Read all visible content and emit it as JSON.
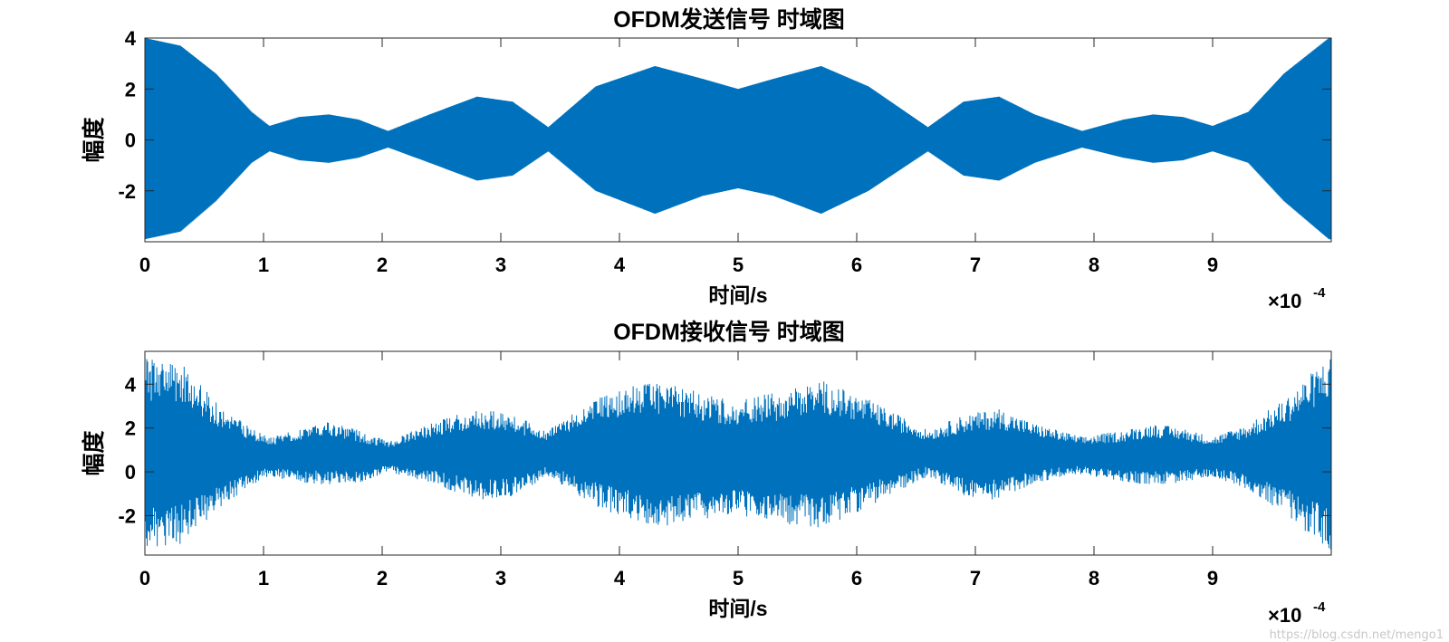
{
  "chart_data": [
    {
      "type": "line",
      "title": "OFDM发送信号 时域图",
      "xlabel": "时间/s",
      "ylabel": "幅度",
      "x_exponent_label": "×10",
      "x_exponent_power": "-4",
      "xlim": [
        0,
        10
      ],
      "ylim": [
        -4,
        4
      ],
      "xticks": [
        0,
        1,
        2,
        3,
        4,
        5,
        6,
        7,
        8,
        9
      ],
      "yticks": [
        -2,
        0,
        2,
        4
      ],
      "xtick_labels": [
        "0",
        "1",
        "2",
        "3",
        "4",
        "5",
        "6",
        "7",
        "8",
        "9"
      ],
      "ytick_labels": [
        "-2",
        "0",
        "2",
        "4"
      ],
      "grid": false,
      "line_color": "#0072BD",
      "envelope": {
        "t": [
          0,
          0.3,
          0.6,
          0.9,
          1.05,
          1.3,
          1.55,
          1.8,
          2.05,
          2.4,
          2.8,
          3.1,
          3.4,
          3.8,
          4.3,
          4.7,
          5.0,
          5.3,
          5.7,
          6.1,
          6.6,
          6.9,
          7.2,
          7.5,
          7.9,
          8.25,
          8.5,
          8.75,
          9.0,
          9.3,
          9.6,
          9.98
        ],
        "upper": [
          4.0,
          3.7,
          2.6,
          1.1,
          0.55,
          0.9,
          1.0,
          0.8,
          0.35,
          1.0,
          1.7,
          1.5,
          0.5,
          2.1,
          2.9,
          2.4,
          2.0,
          2.4,
          2.9,
          2.1,
          0.5,
          1.5,
          1.7,
          1.0,
          0.35,
          0.8,
          1.0,
          0.9,
          0.55,
          1.1,
          2.6,
          4.0
        ],
        "lower": [
          -3.9,
          -3.6,
          -2.4,
          -0.9,
          -0.45,
          -0.8,
          -0.9,
          -0.7,
          -0.3,
          -0.9,
          -1.6,
          -1.4,
          -0.45,
          -2.0,
          -2.9,
          -2.2,
          -1.9,
          -2.2,
          -2.9,
          -2.0,
          -0.45,
          -1.4,
          -1.6,
          -0.9,
          -0.3,
          -0.7,
          -0.9,
          -0.8,
          -0.45,
          -0.9,
          -2.4,
          -3.9
        ]
      }
    },
    {
      "type": "line",
      "title": "OFDM接收信号 时域图",
      "xlabel": "时间/s",
      "ylabel": "幅度",
      "x_exponent_label": "×10",
      "x_exponent_power": "-4",
      "xlim": [
        0,
        10
      ],
      "ylim": [
        -3.8,
        5.5
      ],
      "xticks": [
        0,
        1,
        2,
        3,
        4,
        5,
        6,
        7,
        8,
        9
      ],
      "yticks": [
        -2,
        0,
        2,
        4
      ],
      "xtick_labels": [
        "0",
        "1",
        "2",
        "3",
        "4",
        "5",
        "6",
        "7",
        "8",
        "9"
      ],
      "ytick_labels": [
        "-2",
        "0",
        "2",
        "4"
      ],
      "grid": false,
      "line_color": "#0072BD",
      "envelope": {
        "t": [
          0,
          0.3,
          0.6,
          0.9,
          1.05,
          1.3,
          1.55,
          1.8,
          2.05,
          2.4,
          2.8,
          3.1,
          3.4,
          3.8,
          4.3,
          4.7,
          5.0,
          5.3,
          5.7,
          6.1,
          6.6,
          6.9,
          7.2,
          7.5,
          7.9,
          8.25,
          8.5,
          8.75,
          9.0,
          9.3,
          9.6,
          9.98
        ],
        "upper": [
          5.2,
          5.0,
          3.2,
          2.0,
          1.6,
          2.0,
          2.3,
          1.9,
          1.4,
          2.2,
          2.9,
          2.6,
          1.9,
          3.4,
          4.2,
          3.6,
          3.3,
          3.6,
          4.2,
          3.3,
          1.9,
          2.6,
          2.9,
          2.2,
          1.6,
          1.9,
          2.2,
          2.0,
          1.6,
          2.2,
          3.3,
          5.3
        ],
        "lower": [
          -3.5,
          -3.3,
          -1.8,
          -0.6,
          -0.2,
          -0.5,
          -0.6,
          -0.5,
          0.0,
          -0.5,
          -1.3,
          -1.1,
          -0.2,
          -1.6,
          -2.6,
          -2.2,
          -2.0,
          -2.3,
          -2.6,
          -1.6,
          -0.2,
          -1.1,
          -1.3,
          -0.5,
          -0.1,
          -0.5,
          -0.6,
          -0.5,
          -0.2,
          -0.8,
          -1.9,
          -3.6
        ]
      }
    }
  ],
  "watermark": "https://blog.csdn.net/mengo1"
}
